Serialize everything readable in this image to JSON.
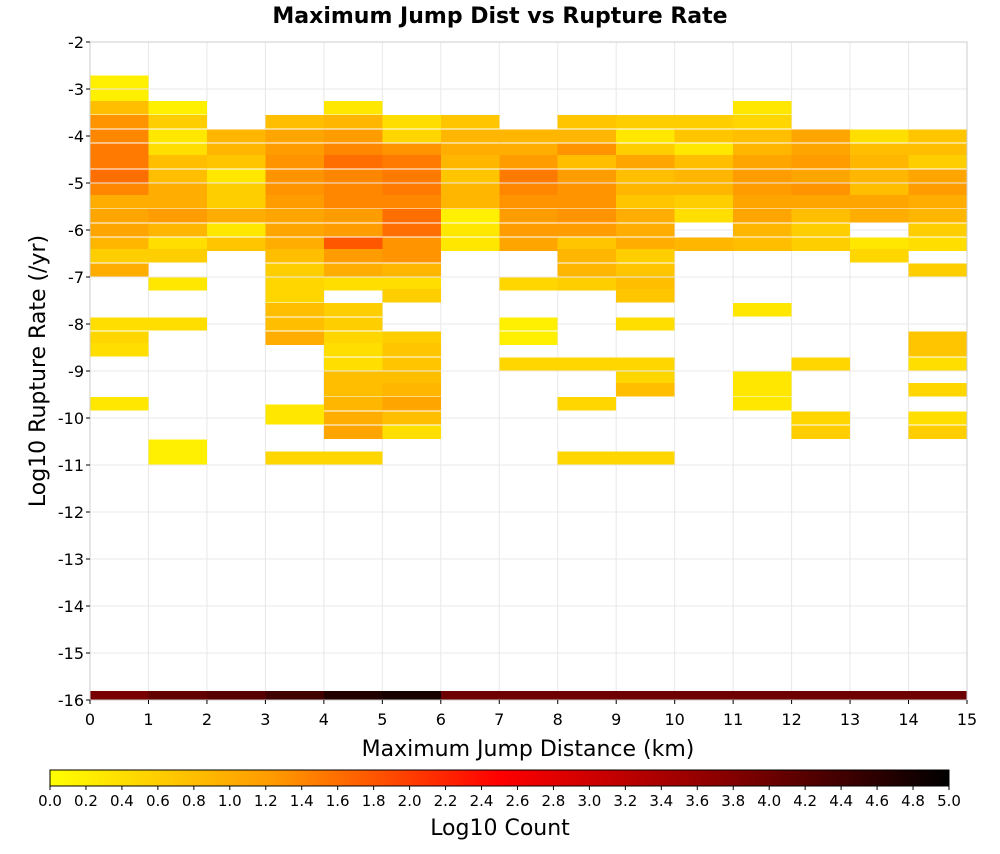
{
  "chart_data": {
    "type": "heatmap",
    "title": "Maximum Jump Dist vs Rupture Rate",
    "xlabel": "Maximum Jump Distance (km)",
    "ylabel": "Log10 Rupture Rate (/yr)",
    "xlim": [
      0,
      15
    ],
    "ylim": [
      -16,
      -2
    ],
    "x_ticks": [
      "0",
      "1",
      "2",
      "3",
      "4",
      "5",
      "6",
      "7",
      "8",
      "9",
      "10",
      "11",
      "12",
      "13",
      "14",
      "15"
    ],
    "y_ticks": [
      "-2",
      "-3",
      "-4",
      "-5",
      "-6",
      "-7",
      "-8",
      "-9",
      "-10",
      "-11",
      "-12",
      "-13",
      "-14",
      "-15",
      "-16"
    ],
    "grid": true,
    "bin_width_x": 1,
    "bin_height_y": 0.285,
    "colorbar": {
      "label": "Log10 Count",
      "range": [
        0,
        5
      ],
      "ticks": [
        "0.0",
        "0.2",
        "0.4",
        "0.6",
        "0.8",
        "1.0",
        "1.2",
        "1.4",
        "1.6",
        "1.8",
        "2.0",
        "2.2",
        "2.4",
        "2.6",
        "2.8",
        "3.0",
        "3.2",
        "3.4",
        "3.6",
        "3.8",
        "4.0",
        "4.2",
        "4.4",
        "4.6",
        "4.8",
        "5.0"
      ],
      "colormap": [
        "#ffff00",
        "#ff9900",
        "#ff0000",
        "#880000",
        "#000000"
      ]
    },
    "bottom_row": {
      "y": -16,
      "values": [
        3.9,
        4.1,
        4.2,
        4.4,
        4.7,
        4.8,
        4.0,
        4.0,
        4.0,
        4.0,
        4.0,
        4.0,
        4.0,
        4.0,
        4.0
      ]
    },
    "columns": [
      {
        "x": 0,
        "cells": [
          [
            -2.85,
            0.2
          ],
          [
            -3.15,
            0.2
          ],
          [
            -3.4,
            0.8
          ],
          [
            -3.7,
            1.3
          ],
          [
            -4.0,
            1.4
          ],
          [
            -4.3,
            1.5
          ],
          [
            -4.55,
            1.5
          ],
          [
            -4.85,
            1.6
          ],
          [
            -5.15,
            1.4
          ],
          [
            -5.4,
            1.0
          ],
          [
            -5.7,
            1.1
          ],
          [
            -6.0,
            1.1
          ],
          [
            -6.3,
            0.9
          ],
          [
            -6.55,
            0.6
          ],
          [
            -6.85,
            1.0
          ],
          [
            -8.0,
            0.4
          ],
          [
            -8.3,
            0.5
          ],
          [
            -8.55,
            0.4
          ],
          [
            -9.7,
            0.3
          ]
        ]
      },
      {
        "x": 1,
        "cells": [
          [
            -3.4,
            0.2
          ],
          [
            -3.7,
            0.6
          ],
          [
            -4.0,
            0.3
          ],
          [
            -4.3,
            0.4
          ],
          [
            -4.55,
            0.8
          ],
          [
            -4.85,
            0.8
          ],
          [
            -5.15,
            1.0
          ],
          [
            -5.4,
            1.0
          ],
          [
            -5.7,
            1.2
          ],
          [
            -6.0,
            0.9
          ],
          [
            -6.3,
            0.4
          ],
          [
            -6.55,
            0.6
          ],
          [
            -7.15,
            0.3
          ],
          [
            -8.0,
            0.4
          ],
          [
            -10.6,
            0.2
          ],
          [
            -10.85,
            0.2
          ]
        ]
      },
      {
        "x": 2,
        "cells": [
          [
            -4.0,
            0.9
          ],
          [
            -4.3,
            0.9
          ],
          [
            -4.55,
            0.7
          ],
          [
            -4.85,
            0.3
          ],
          [
            -5.15,
            0.6
          ],
          [
            -5.4,
            0.6
          ],
          [
            -5.7,
            1.0
          ],
          [
            -6.0,
            0.3
          ],
          [
            -6.3,
            0.7
          ]
        ]
      },
      {
        "x": 3,
        "cells": [
          [
            -3.7,
            0.8
          ],
          [
            -4.0,
            1.1
          ],
          [
            -4.3,
            1.2
          ],
          [
            -4.55,
            1.3
          ],
          [
            -4.85,
            1.3
          ],
          [
            -5.15,
            1.3
          ],
          [
            -5.4,
            1.2
          ],
          [
            -5.7,
            1.1
          ],
          [
            -6.0,
            1.1
          ],
          [
            -6.3,
            1.0
          ],
          [
            -6.55,
            0.8
          ],
          [
            -6.85,
            0.6
          ],
          [
            -7.15,
            0.5
          ],
          [
            -7.4,
            0.5
          ],
          [
            -7.7,
            0.8
          ],
          [
            -8.0,
            0.8
          ],
          [
            -8.3,
            1.0
          ],
          [
            -9.85,
            0.3
          ],
          [
            -10.0,
            0.3
          ],
          [
            -10.85,
            0.5
          ]
        ]
      },
      {
        "x": 4,
        "cells": [
          [
            -3.4,
            0.3
          ],
          [
            -3.7,
            0.9
          ],
          [
            -4.0,
            1.2
          ],
          [
            -4.3,
            1.4
          ],
          [
            -4.55,
            1.6
          ],
          [
            -4.85,
            1.4
          ],
          [
            -5.15,
            1.4
          ],
          [
            -5.4,
            1.4
          ],
          [
            -5.7,
            1.2
          ],
          [
            -6.0,
            1.2
          ],
          [
            -6.3,
            1.8
          ],
          [
            -6.55,
            1.2
          ],
          [
            -6.85,
            1.0
          ],
          [
            -7.15,
            0.4
          ],
          [
            -7.7,
            0.6
          ],
          [
            -8.0,
            0.6
          ],
          [
            -8.3,
            0.5
          ],
          [
            -8.55,
            0.4
          ],
          [
            -8.85,
            0.4
          ],
          [
            -9.15,
            0.8
          ],
          [
            -9.4,
            0.8
          ],
          [
            -9.7,
            0.9
          ],
          [
            -10.0,
            1.0
          ],
          [
            -10.3,
            1.1
          ],
          [
            -10.85,
            0.5
          ]
        ]
      },
      {
        "x": 5,
        "cells": [
          [
            -3.7,
            0.4
          ],
          [
            -4.0,
            0.5
          ],
          [
            -4.3,
            1.3
          ],
          [
            -4.55,
            1.5
          ],
          [
            -4.85,
            1.5
          ],
          [
            -5.15,
            1.5
          ],
          [
            -5.4,
            1.4
          ],
          [
            -5.7,
            1.6
          ],
          [
            -6.0,
            1.6
          ],
          [
            -6.3,
            1.3
          ],
          [
            -6.55,
            1.3
          ],
          [
            -6.85,
            0.9
          ],
          [
            -7.15,
            0.4
          ],
          [
            -7.4,
            0.6
          ],
          [
            -8.3,
            0.6
          ],
          [
            -8.55,
            0.7
          ],
          [
            -8.85,
            0.7
          ],
          [
            -9.15,
            0.8
          ],
          [
            -9.4,
            0.9
          ],
          [
            -9.7,
            1.1
          ],
          [
            -10.0,
            0.8
          ],
          [
            -10.3,
            0.4
          ]
        ]
      },
      {
        "x": 6,
        "cells": [
          [
            -3.7,
            0.7
          ],
          [
            -4.0,
            0.9
          ],
          [
            -4.3,
            1.0
          ],
          [
            -4.55,
            0.9
          ],
          [
            -4.85,
            0.7
          ],
          [
            -5.15,
            0.9
          ],
          [
            -5.4,
            0.9
          ],
          [
            -5.7,
            0.2
          ],
          [
            -6.0,
            0.3
          ],
          [
            -6.3,
            0.3
          ]
        ]
      },
      {
        "x": 7,
        "cells": [
          [
            -4.0,
            0.9
          ],
          [
            -4.3,
            1.0
          ],
          [
            -4.55,
            1.2
          ],
          [
            -4.85,
            1.5
          ],
          [
            -5.15,
            1.4
          ],
          [
            -5.4,
            1.3
          ],
          [
            -5.7,
            1.2
          ],
          [
            -6.0,
            1.2
          ],
          [
            -6.3,
            1.1
          ],
          [
            -7.15,
            0.5
          ],
          [
            -8.0,
            0.2
          ],
          [
            -8.3,
            0.2
          ],
          [
            -8.85,
            0.5
          ]
        ]
      },
      {
        "x": 8,
        "cells": [
          [
            -3.7,
            0.7
          ],
          [
            -4.0,
            0.9
          ],
          [
            -4.3,
            1.3
          ],
          [
            -4.55,
            0.8
          ],
          [
            -4.85,
            1.2
          ],
          [
            -5.15,
            1.3
          ],
          [
            -5.4,
            1.3
          ],
          [
            -5.7,
            1.3
          ],
          [
            -6.0,
            1.2
          ],
          [
            -6.3,
            0.7
          ],
          [
            -6.55,
            0.9
          ],
          [
            -6.85,
            0.9
          ],
          [
            -7.15,
            0.6
          ],
          [
            -8.85,
            0.5
          ],
          [
            -9.7,
            0.5
          ],
          [
            -10.85,
            0.5
          ]
        ]
      },
      {
        "x": 9,
        "cells": [
          [
            -3.7,
            0.6
          ],
          [
            -4.0,
            0.3
          ],
          [
            -4.3,
            0.6
          ],
          [
            -4.55,
            1.1
          ],
          [
            -4.85,
            0.8
          ],
          [
            -5.15,
            0.9
          ],
          [
            -5.4,
            0.7
          ],
          [
            -5.7,
            1.0
          ],
          [
            -6.0,
            1.0
          ],
          [
            -6.3,
            1.0
          ],
          [
            -6.55,
            0.6
          ],
          [
            -6.85,
            0.7
          ],
          [
            -7.15,
            0.8
          ],
          [
            -7.4,
            0.7
          ],
          [
            -8.0,
            0.4
          ],
          [
            -8.85,
            0.5
          ],
          [
            -9.15,
            0.5
          ],
          [
            -9.4,
            0.8
          ],
          [
            -10.85,
            0.5
          ]
        ]
      },
      {
        "x": 10,
        "cells": [
          [
            -3.7,
            0.6
          ],
          [
            -4.0,
            0.7
          ],
          [
            -4.3,
            0.3
          ],
          [
            -4.55,
            0.8
          ],
          [
            -4.85,
            0.9
          ],
          [
            -5.15,
            0.9
          ],
          [
            -5.4,
            0.6
          ],
          [
            -5.7,
            0.4
          ],
          [
            -6.3,
            0.9
          ]
        ]
      },
      {
        "x": 11,
        "cells": [
          [
            -3.4,
            0.3
          ],
          [
            -3.7,
            0.5
          ],
          [
            -4.0,
            0.8
          ],
          [
            -4.3,
            0.9
          ],
          [
            -4.55,
            1.1
          ],
          [
            -4.85,
            1.2
          ],
          [
            -5.15,
            1.2
          ],
          [
            -5.4,
            1.1
          ],
          [
            -5.7,
            1.1
          ],
          [
            -6.0,
            0.9
          ],
          [
            -6.3,
            0.8
          ],
          [
            -7.7,
            0.3
          ],
          [
            -9.15,
            0.3
          ],
          [
            -9.4,
            0.3
          ],
          [
            -9.7,
            0.3
          ]
        ]
      },
      {
        "x": 12,
        "cells": [
          [
            -4.0,
            1.1
          ],
          [
            -4.3,
            1.1
          ],
          [
            -4.55,
            1.2
          ],
          [
            -4.85,
            1.1
          ],
          [
            -5.15,
            1.3
          ],
          [
            -5.4,
            1.1
          ],
          [
            -5.7,
            0.8
          ],
          [
            -6.0,
            0.6
          ],
          [
            -6.3,
            0.6
          ],
          [
            -8.85,
            0.5
          ],
          [
            -10.0,
            0.5
          ],
          [
            -10.3,
            0.6
          ]
        ]
      },
      {
        "x": 13,
        "cells": [
          [
            -4.0,
            0.4
          ],
          [
            -4.3,
            0.8
          ],
          [
            -4.55,
            0.9
          ],
          [
            -4.85,
            0.9
          ],
          [
            -5.15,
            0.8
          ],
          [
            -5.4,
            1.1
          ],
          [
            -5.7,
            1.0
          ],
          [
            -6.3,
            0.3
          ],
          [
            -6.55,
            0.5
          ]
        ]
      },
      {
        "x": 14,
        "cells": [
          [
            -4.0,
            0.7
          ],
          [
            -4.3,
            0.8
          ],
          [
            -4.55,
            0.6
          ],
          [
            -4.85,
            1.1
          ],
          [
            -5.15,
            1.2
          ],
          [
            -5.4,
            1.0
          ],
          [
            -5.7,
            0.9
          ],
          [
            -6.0,
            0.6
          ],
          [
            -6.3,
            0.4
          ],
          [
            -6.85,
            0.6
          ],
          [
            -8.3,
            0.7
          ],
          [
            -8.55,
            0.7
          ],
          [
            -8.85,
            0.4
          ],
          [
            -9.4,
            0.5
          ],
          [
            -10.0,
            0.4
          ],
          [
            -10.3,
            0.6
          ]
        ]
      }
    ]
  }
}
